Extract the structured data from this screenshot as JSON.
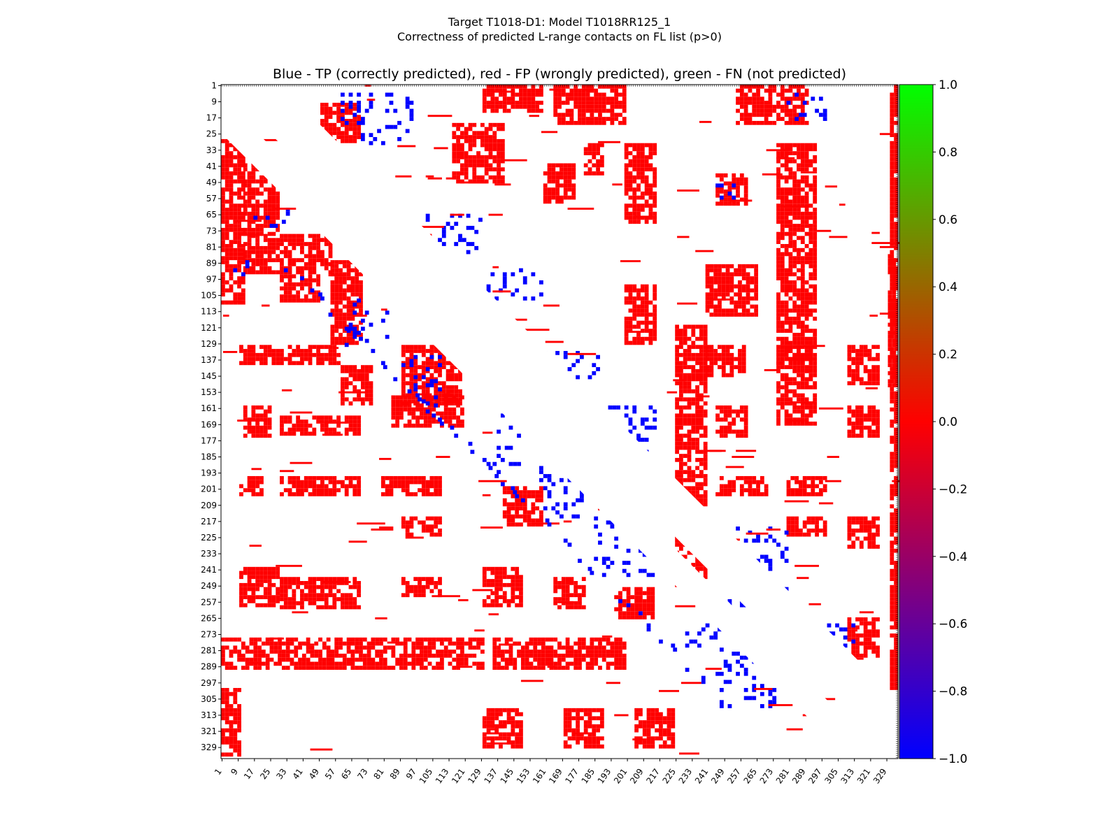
{
  "figure": {
    "suptitle_line1": "Target T1018-D1: Model T1018RR125_1",
    "suptitle_line2": "Correctness of predicted L-range contacts on FL list (p>0)",
    "plot_title": "Blue - TP (correctly predicted), red - FP (wrongly predicted), green - FN (not predicted)"
  },
  "colors": {
    "tp": "#0000ff",
    "fp": "#ff0000",
    "fn": "#00ff00",
    "background": "#ffffff"
  },
  "chart_data": {
    "type": "heatmap",
    "title": "Blue - TP (correctly predicted), red - FP (wrongly predicted), green - FN (not predicted)",
    "xlabel": "",
    "ylabel": "",
    "axis_range": [
      1,
      334
    ],
    "x_ticks": [
      1,
      9,
      17,
      25,
      33,
      41,
      49,
      57,
      65,
      73,
      81,
      89,
      97,
      105,
      113,
      121,
      129,
      137,
      145,
      153,
      161,
      169,
      177,
      185,
      193,
      201,
      209,
      217,
      225,
      233,
      241,
      249,
      257,
      265,
      273,
      281,
      289,
      297,
      305,
      313,
      321,
      329
    ],
    "y_ticks": [
      1,
      9,
      17,
      25,
      33,
      41,
      49,
      57,
      65,
      73,
      81,
      89,
      97,
      105,
      113,
      121,
      129,
      137,
      145,
      153,
      161,
      169,
      177,
      185,
      193,
      201,
      209,
      217,
      225,
      233,
      241,
      249,
      257,
      265,
      273,
      281,
      289,
      297,
      305,
      313,
      321,
      329
    ],
    "categories": [
      {
        "label": "TP (correctly predicted)",
        "color": "#0000ff",
        "value": -1.0
      },
      {
        "label": "FP (wrongly predicted)",
        "color": "#ff0000",
        "value": 0.0
      },
      {
        "label": "FN (not predicted)",
        "color": "#00ff00",
        "value": 1.0
      }
    ],
    "colorbar": {
      "range": [
        -1.0,
        1.0
      ],
      "ticks": [
        "1.0",
        "0.8",
        "0.6",
        "0.4",
        "0.2",
        "0.0",
        "−0.2",
        "−0.4",
        "−0.6",
        "−0.8",
        "−1.0"
      ],
      "gradient": [
        "#00ff00",
        "#ff0000",
        "#0000ff"
      ]
    },
    "diagonal_bands": {
      "upper_band_offset": 24,
      "lower_band_offset": 134
    },
    "regions": [
      {
        "type": "fp",
        "i": [
          20,
          110
        ],
        "j": [
          1,
          12
        ]
      },
      {
        "type": "fp",
        "i": [
          40,
          75
        ],
        "j": [
          12,
          30
        ]
      },
      {
        "type": "fp",
        "i": [
          75,
          95
        ],
        "j": [
          12,
          55
        ]
      },
      {
        "type": "fp",
        "i": [
          95,
          108
        ],
        "j": [
          30,
          50
        ]
      },
      {
        "type": "fp",
        "i": [
          88,
          130
        ],
        "j": [
          55,
          70
        ]
      },
      {
        "type": "fp",
        "i": [
          130,
          140
        ],
        "j": [
          10,
          60
        ]
      },
      {
        "type": "fp",
        "i": [
          160,
          175
        ],
        "j": [
          12,
          25
        ]
      },
      {
        "type": "fp",
        "i": [
          165,
          175
        ],
        "j": [
          30,
          70
        ]
      },
      {
        "type": "fp",
        "i": [
          140,
          160
        ],
        "j": [
          60,
          75
        ]
      },
      {
        "type": "fp",
        "i": [
          130,
          160
        ],
        "j": [
          90,
          120
        ]
      },
      {
        "type": "fp",
        "i": [
          155,
          170
        ],
        "j": [
          85,
          120
        ]
      },
      {
        "type": "fp",
        "i": [
          195,
          205
        ],
        "j": [
          10,
          22
        ]
      },
      {
        "type": "fp",
        "i": [
          195,
          205
        ],
        "j": [
          30,
          70
        ]
      },
      {
        "type": "fp",
        "i": [
          195,
          205
        ],
        "j": [
          80,
          110
        ]
      },
      {
        "type": "fp",
        "i": [
          215,
          225
        ],
        "j": [
          90,
          110
        ]
      },
      {
        "type": "fp",
        "i": [
          240,
          260
        ],
        "j": [
          10,
          30
        ]
      },
      {
        "type": "fp",
        "i": [
          245,
          260
        ],
        "j": [
          30,
          70
        ]
      },
      {
        "type": "fp",
        "i": [
          245,
          255
        ],
        "j": [
          90,
          110
        ]
      },
      {
        "type": "fp",
        "i": [
          275,
          290
        ],
        "j": [
          1,
          130
        ]
      },
      {
        "type": "fp",
        "i": [
          275,
          290
        ],
        "j": [
          135,
          200
        ]
      },
      {
        "type": "fp",
        "i": [
          240,
          260
        ],
        "j": [
          130,
          150
        ]
      },
      {
        "type": "fp",
        "i": [
          245,
          260
        ],
        "j": [
          165,
          180
        ]
      },
      {
        "type": "fp",
        "i": [
          250,
          265
        ],
        "j": [
          195,
          215
        ]
      },
      {
        "type": "fp",
        "i": [
          200,
          220
        ],
        "j": [
          140,
          160
        ]
      },
      {
        "type": "fp",
        "i": [
          300,
          334
        ],
        "j": [
          1,
          10
        ]
      },
      {
        "type": "fp",
        "i": [
          310,
          330
        ],
        "j": [
          130,
          150
        ]
      },
      {
        "type": "fp",
        "i": [
          310,
          330
        ],
        "j": [
          170,
          190
        ]
      },
      {
        "type": "fp",
        "i": [
          310,
          330
        ],
        "j": [
          205,
          225
        ]
      },
      {
        "type": "fp",
        "i": [
          10,
          30
        ],
        "j": [
          50,
          70
        ]
      },
      {
        "type": "fp",
        "i": [
          1,
          15
        ],
        "j": [
          130,
          160
        ]
      },
      {
        "type": "fp",
        "i": [
          20,
          50
        ],
        "j": [
          115,
          140
        ]
      },
      {
        "type": "fp",
        "i": [
          40,
          60
        ],
        "j": [
          160,
          175
        ]
      },
      {
        "type": "fp",
        "i": [
          30,
          45
        ],
        "j": [
          180,
          190
        ]
      },
      {
        "type": "fp",
        "i": [
          1,
          20
        ],
        "j": [
          165,
          200
        ]
      },
      {
        "type": "fp",
        "i": [
          30,
          70
        ],
        "j": [
          200,
          215
        ]
      },
      {
        "type": "fp",
        "i": [
          45,
          60
        ],
        "j": [
          245,
          260
        ]
      },
      {
        "type": "fp",
        "i": [
          1,
          20
        ],
        "j": [
          255,
          290
        ]
      },
      {
        "type": "fp",
        "i": [
          30,
          140
        ],
        "j": [
          275,
          295
        ]
      },
      {
        "type": "fp",
        "i": [
          100,
          130
        ],
        "j": [
          200,
          215
        ]
      },
      {
        "type": "fp",
        "i": [
          90,
          115
        ],
        "j": [
          240,
          265
        ]
      },
      {
        "type": "fp",
        "i": [
          130,
          145
        ],
        "j": [
          240,
          260
        ]
      },
      {
        "type": "fp",
        "i": [
          130,
          170
        ],
        "j": [
          275,
          295
        ]
      },
      {
        "type": "fp",
        "i": [
          160,
          175
        ],
        "j": [
          245,
          260
        ]
      },
      {
        "type": "fp",
        "i": [
          130,
          150
        ],
        "j": [
          310,
          325
        ]
      },
      {
        "type": "fp",
        "i": [
          160,
          175
        ],
        "j": [
          310,
          325
        ]
      },
      {
        "type": "fp",
        "i": [
          195,
          205
        ],
        "j": [
          245,
          270
        ]
      },
      {
        "type": "fp",
        "i": [
          195,
          205
        ],
        "j": [
          280,
          300
        ]
      },
      {
        "type": "fp",
        "i": [
          215,
          225
        ],
        "j": [
          280,
          300
        ]
      },
      {
        "type": "fp",
        "i": [
          215,
          230
        ],
        "j": [
          310,
          325
        ]
      },
      {
        "type": "fp",
        "i": [
          265,
          285
        ],
        "j": [
          310,
          325
        ]
      },
      {
        "type": "fp",
        "i": [
          85,
          150
        ],
        "j": [
          330,
          334
        ]
      },
      {
        "type": "fp",
        "i": [
          1,
          300
        ],
        "j": [
          331,
          334
        ]
      },
      {
        "type": "fp",
        "i": [
          120,
          250
        ],
        "j": [
          225,
          240
        ]
      },
      {
        "type": "tp",
        "i": [
          88,
          96
        ],
        "j": [
          5,
          14
        ]
      },
      {
        "type": "tp",
        "i": [
          62,
          72
        ],
        "j": [
          15,
          35
        ]
      },
      {
        "type": "tp",
        "i": [
          105,
          130
        ],
        "j": [
          62,
          85
        ]
      },
      {
        "type": "tp",
        "i": [
          135,
          160
        ],
        "j": [
          88,
          110
        ]
      },
      {
        "type": "tp",
        "i": [
          162,
          190
        ],
        "j": [
          135,
          150
        ]
      },
      {
        "type": "tp",
        "i": [
          190,
          215
        ],
        "j": [
          158,
          180
        ]
      },
      {
        "type": "tp",
        "i": [
          215,
          245
        ],
        "j": [
          185,
          215
        ]
      },
      {
        "type": "tp",
        "i": [
          268,
          280
        ],
        "j": [
          230,
          250
        ]
      },
      {
        "type": "tp",
        "i": [
          280,
          310
        ],
        "j": [
          245,
          275
        ]
      },
      {
        "type": "tp",
        "i": [
          5,
          30
        ],
        "j": [
          60,
          95
        ]
      },
      {
        "type": "tp",
        "i": [
          65,
          85
        ],
        "j": [
          100,
          130
        ]
      },
      {
        "type": "tp",
        "i": [
          92,
          108
        ],
        "j": [
          130,
          160
        ]
      },
      {
        "type": "tp",
        "i": [
          133,
          150
        ],
        "j": [
          160,
          190
        ]
      },
      {
        "type": "tp",
        "i": [
          160,
          185
        ],
        "j": [
          190,
          215
        ]
      },
      {
        "type": "tp",
        "i": [
          220,
          260
        ],
        "j": [
          245,
          280
        ]
      },
      {
        "type": "tp",
        "i": [
          268,
          280
        ],
        "j": [
          300,
          315
        ]
      },
      {
        "type": "tp",
        "i": [
          5,
          20
        ],
        "j": [
          280,
          300
        ]
      },
      {
        "type": "tp",
        "i": [
          48,
          60
        ],
        "j": [
          245,
          258
        ]
      }
    ]
  }
}
